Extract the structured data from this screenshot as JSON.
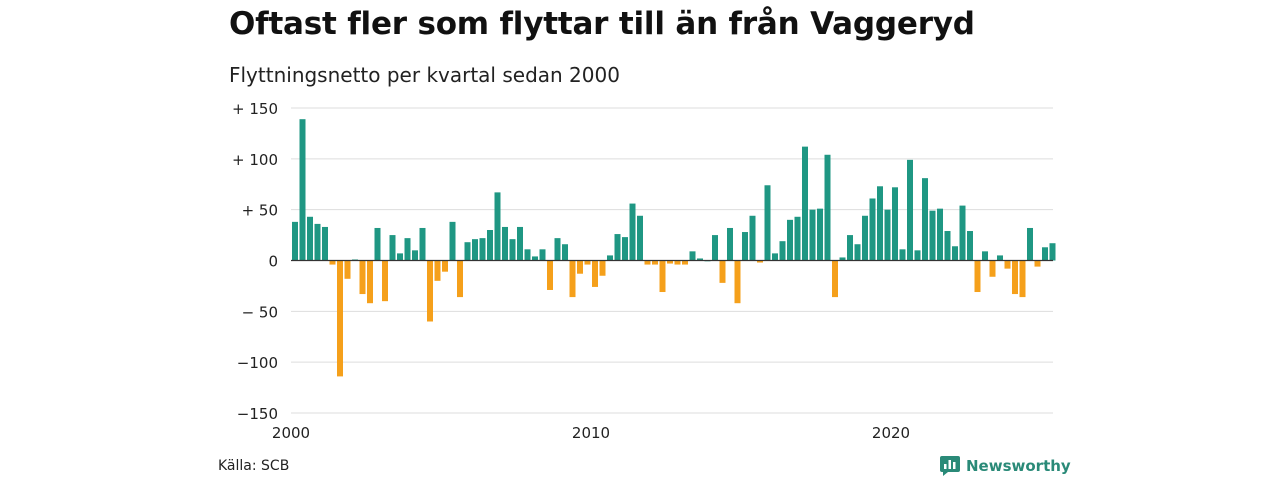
{
  "title": "Oftast fler som flyttar till än från Vaggeryd",
  "subtitle": "Flyttningsnetto per kvartal sedan 2000",
  "source": "Källa: SCB",
  "brand": {
    "name": "Newsworthy",
    "icon": "newsworthy-logo-icon"
  },
  "colors": {
    "positive": "#1f9783",
    "negative": "#f5a01b",
    "grid": "#dddddd",
    "zero_line": "#333333"
  },
  "chart_data": {
    "type": "bar",
    "title": "Oftast fler som flyttar till än från Vaggeryd",
    "subtitle": "Flyttningsnetto per kvartal sedan 2000",
    "x_start": 2000,
    "periods_per_year": 4,
    "x_ticks": [
      "2000",
      "2010",
      "2020"
    ],
    "y_ticks": [
      "+ 150",
      "+ 100",
      "+  50",
      "0",
      "− 50",
      "−100",
      "−150"
    ],
    "ylim": [
      -150,
      150
    ],
    "grid": true,
    "values": [
      38,
      139,
      43,
      36,
      33,
      -4,
      -114,
      -18,
      1,
      -33,
      -42,
      32,
      -40,
      25,
      7,
      22,
      10,
      32,
      -60,
      -20,
      -11,
      38,
      -36,
      18,
      21,
      22,
      30,
      67,
      33,
      21,
      33,
      11,
      4,
      11,
      -29,
      22,
      16,
      -36,
      -13,
      -4,
      -26,
      -15,
      5,
      26,
      23,
      56,
      44,
      -4,
      -4,
      -31,
      -3,
      -4,
      -4,
      9,
      2,
      0,
      25,
      -22,
      32,
      -42,
      28,
      44,
      -2,
      74,
      7,
      19,
      40,
      43,
      112,
      50,
      51,
      104,
      -36,
      3,
      25,
      16,
      44,
      61,
      73,
      50,
      72,
      11,
      99,
      10,
      81,
      49,
      51,
      29,
      14,
      54,
      29,
      -31,
      9,
      -16,
      5,
      -8,
      -33,
      -36,
      32,
      -6,
      13,
      17
    ]
  }
}
